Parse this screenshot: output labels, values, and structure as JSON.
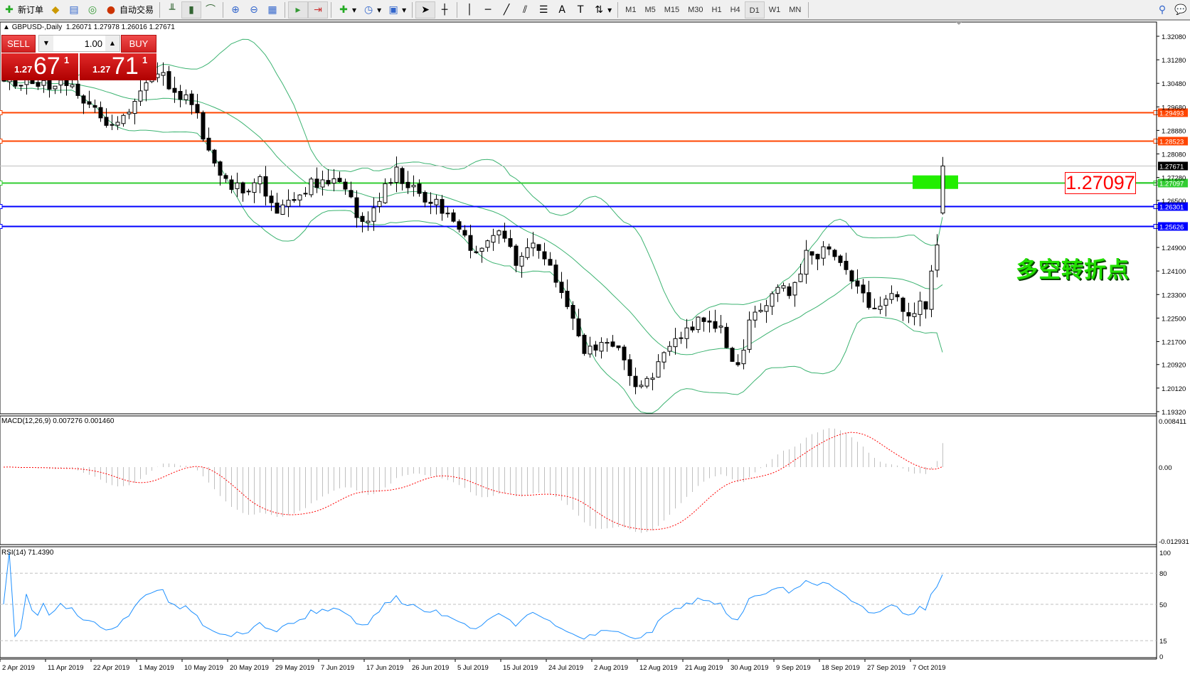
{
  "toolbar": {
    "new_order": "新订单",
    "auto_trading": "自动交易",
    "timeframes": [
      "M1",
      "M5",
      "M15",
      "M30",
      "H1",
      "H4",
      "D1",
      "W1",
      "MN"
    ],
    "active_timeframe": "D1",
    "icons": [
      "new-order-icon",
      "market-watch-icon",
      "data-window-icon",
      "signals-icon",
      "auto-trading-icon",
      "bar-chart-icon",
      "candlestick-icon",
      "line-chart-icon",
      "zoom-in-icon",
      "zoom-out-icon",
      "tile-windows-icon",
      "auto-scroll-icon",
      "chart-shift-icon",
      "indicators-icon",
      "periods-icon",
      "templates-icon",
      "cursor-icon",
      "crosshair-icon",
      "vertical-line-icon",
      "horizontal-line-icon",
      "trendline-icon",
      "equidistant-channel-icon",
      "fibonacci-icon",
      "text-icon",
      "text-label-icon",
      "arrows-icon",
      "search-icon",
      "chat-icon"
    ]
  },
  "chart": {
    "symbol_header": "GBPUSD-,Daily",
    "ohlc": "1.26071 1.27978 1.26016 1.27671"
  },
  "trade_panel": {
    "sell_label": "SELL",
    "buy_label": "BUY",
    "lots": "1.00",
    "sell_prefix": "1.27",
    "sell_big": "67",
    "sell_sup": "1",
    "buy_prefix": "1.27",
    "buy_big": "71",
    "buy_sup": "1"
  },
  "annotations": {
    "level_label": "1.27097",
    "text": "多空转折点"
  },
  "chart_data": {
    "type": "candlestick",
    "symbol": "GBPUSD-",
    "timeframe": "Daily",
    "closes_sampled": [
      1.304,
      1.3045,
      1.305,
      1.3048,
      1.3025,
      1.299,
      1.2915,
      1.2935,
      1.304,
      1.3095,
      1.3,
      1.299,
      1.283,
      1.2705,
      1.269,
      1.2715,
      1.263,
      1.265,
      1.2715,
      1.271,
      1.27,
      1.257,
      1.266,
      1.274,
      1.268,
      1.2655,
      1.258,
      1.252,
      1.247,
      1.255,
      1.243,
      1.249,
      1.244,
      1.227,
      1.214,
      1.215,
      1.214,
      1.203,
      1.206,
      1.215,
      1.22,
      1.226,
      1.22,
      1.208,
      1.229,
      1.232,
      1.235,
      1.246,
      1.247,
      1.244,
      1.235,
      1.229,
      1.233,
      1.227,
      1.23,
      1.263
    ],
    "last_bar": {
      "open": 1.26071,
      "high": 1.27978,
      "low": 1.26016,
      "close": 1.27671
    },
    "ylim": [
      1.1932,
      1.3208
    ],
    "price_ticks": [
      "1.32080",
      "1.31280",
      "1.30480",
      "1.29680",
      "1.28880",
      "1.28080",
      "1.27280",
      "1.26500",
      "1.24900",
      "1.24100",
      "1.23300",
      "1.22500",
      "1.21700",
      "1.20920",
      "1.20120",
      "1.19320"
    ],
    "date_ticks": [
      "2 Apr 2019",
      "11 Apr 2019",
      "22 Apr 2019",
      "1 May 2019",
      "10 May 2019",
      "20 May 2019",
      "29 May 2019",
      "7 Jun 2019",
      "17 Jun 2019",
      "26 Jun 2019",
      "5 Jul 2019",
      "15 Jul 2019",
      "24 Jul 2019",
      "2 Aug 2019",
      "12 Aug 2019",
      "21 Aug 2019",
      "30 Aug 2019",
      "9 Sep 2019",
      "18 Sep 2019",
      "27 Sep 2019",
      "7 Oct 2019"
    ],
    "hlines": [
      {
        "price": 1.29493,
        "label": "1.29493",
        "color": "#ff4500"
      },
      {
        "price": 1.28523,
        "label": "1.28523",
        "color": "#ff4500"
      },
      {
        "price": 1.27671,
        "label": "1.27671",
        "color": "#000000",
        "line": "#c0c0c0"
      },
      {
        "price": 1.27097,
        "label": "1.27097",
        "color": "#32cd32"
      },
      {
        "price": 1.26301,
        "label": "1.26301",
        "color": "#0000ff"
      },
      {
        "price": 1.25626,
        "label": "1.25626",
        "color": "#0000ff"
      }
    ],
    "bollinger_color": "#3cb371",
    "macd": {
      "label": "MACD(12,26,9) 0.007276 0.001460",
      "axis": [
        "0.008411",
        "0.00",
        "-0.012931"
      ],
      "range": [
        -0.012931,
        0.008411
      ],
      "hist_color": "#c0c0c0",
      "signal_color": "#ff0000"
    },
    "rsi": {
      "label": "RSI(14) 71.4390",
      "levels": [
        "100",
        "80",
        "50",
        "15",
        "0"
      ],
      "color": "#1e90ff"
    }
  }
}
